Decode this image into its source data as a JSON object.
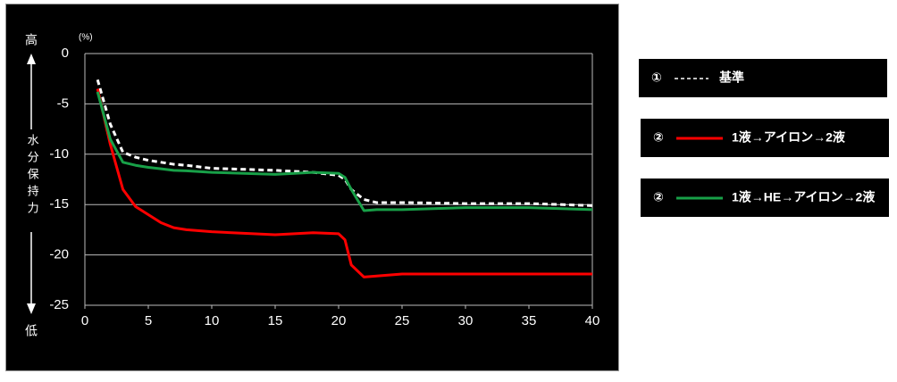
{
  "chart_data": {
    "type": "line",
    "y_label": "水分保持力",
    "y_top_label": "高",
    "y_bottom_label": "低",
    "y_unit": "(%)",
    "x": [
      1,
      2,
      3,
      4,
      5,
      6,
      7,
      8,
      10,
      15,
      18,
      20,
      20.5,
      21,
      22,
      23,
      25,
      30,
      35,
      40
    ],
    "series": [
      {
        "name": "基準",
        "marker": "①",
        "color": "#ffffff",
        "dashed": true,
        "values": [
          -2.6,
          -7,
          -9.8,
          -10.3,
          -10.6,
          -10.8,
          -11,
          -11.1,
          -11.4,
          -11.6,
          -11.8,
          -12.1,
          -12.5,
          -13.5,
          -14.5,
          -14.8,
          -14.8,
          -14.9,
          -14.9,
          -15.1
        ]
      },
      {
        "name": "1液→アイロン→2液",
        "marker": "②",
        "color": "#ff0000",
        "dashed": false,
        "values": [
          -3.5,
          -9,
          -13.5,
          -15.2,
          -16,
          -16.8,
          -17.3,
          -17.5,
          -17.7,
          -18,
          -17.8,
          -17.9,
          -18.5,
          -21,
          -22.2,
          -22.1,
          -21.9,
          -21.9,
          -21.9,
          -21.9
        ]
      },
      {
        "name": "1液→HE→アイロン→2液",
        "marker": "②",
        "color": "#18a048",
        "dashed": false,
        "values": [
          -3.8,
          -8.5,
          -10.8,
          -11.1,
          -11.3,
          -11.45,
          -11.6,
          -11.65,
          -11.8,
          -12,
          -11.8,
          -11.9,
          -12.3,
          -13.5,
          -15.6,
          -15.5,
          -15.5,
          -15.3,
          -15.3,
          -15.5
        ]
      }
    ],
    "xlim": [
      0,
      40
    ],
    "xticks": [
      0,
      5,
      10,
      15,
      20,
      25,
      30,
      35,
      40
    ],
    "ylim": [
      -25,
      0
    ],
    "yticks": [
      0,
      -5,
      -10,
      -15,
      -20,
      -25
    ],
    "grid": true
  }
}
